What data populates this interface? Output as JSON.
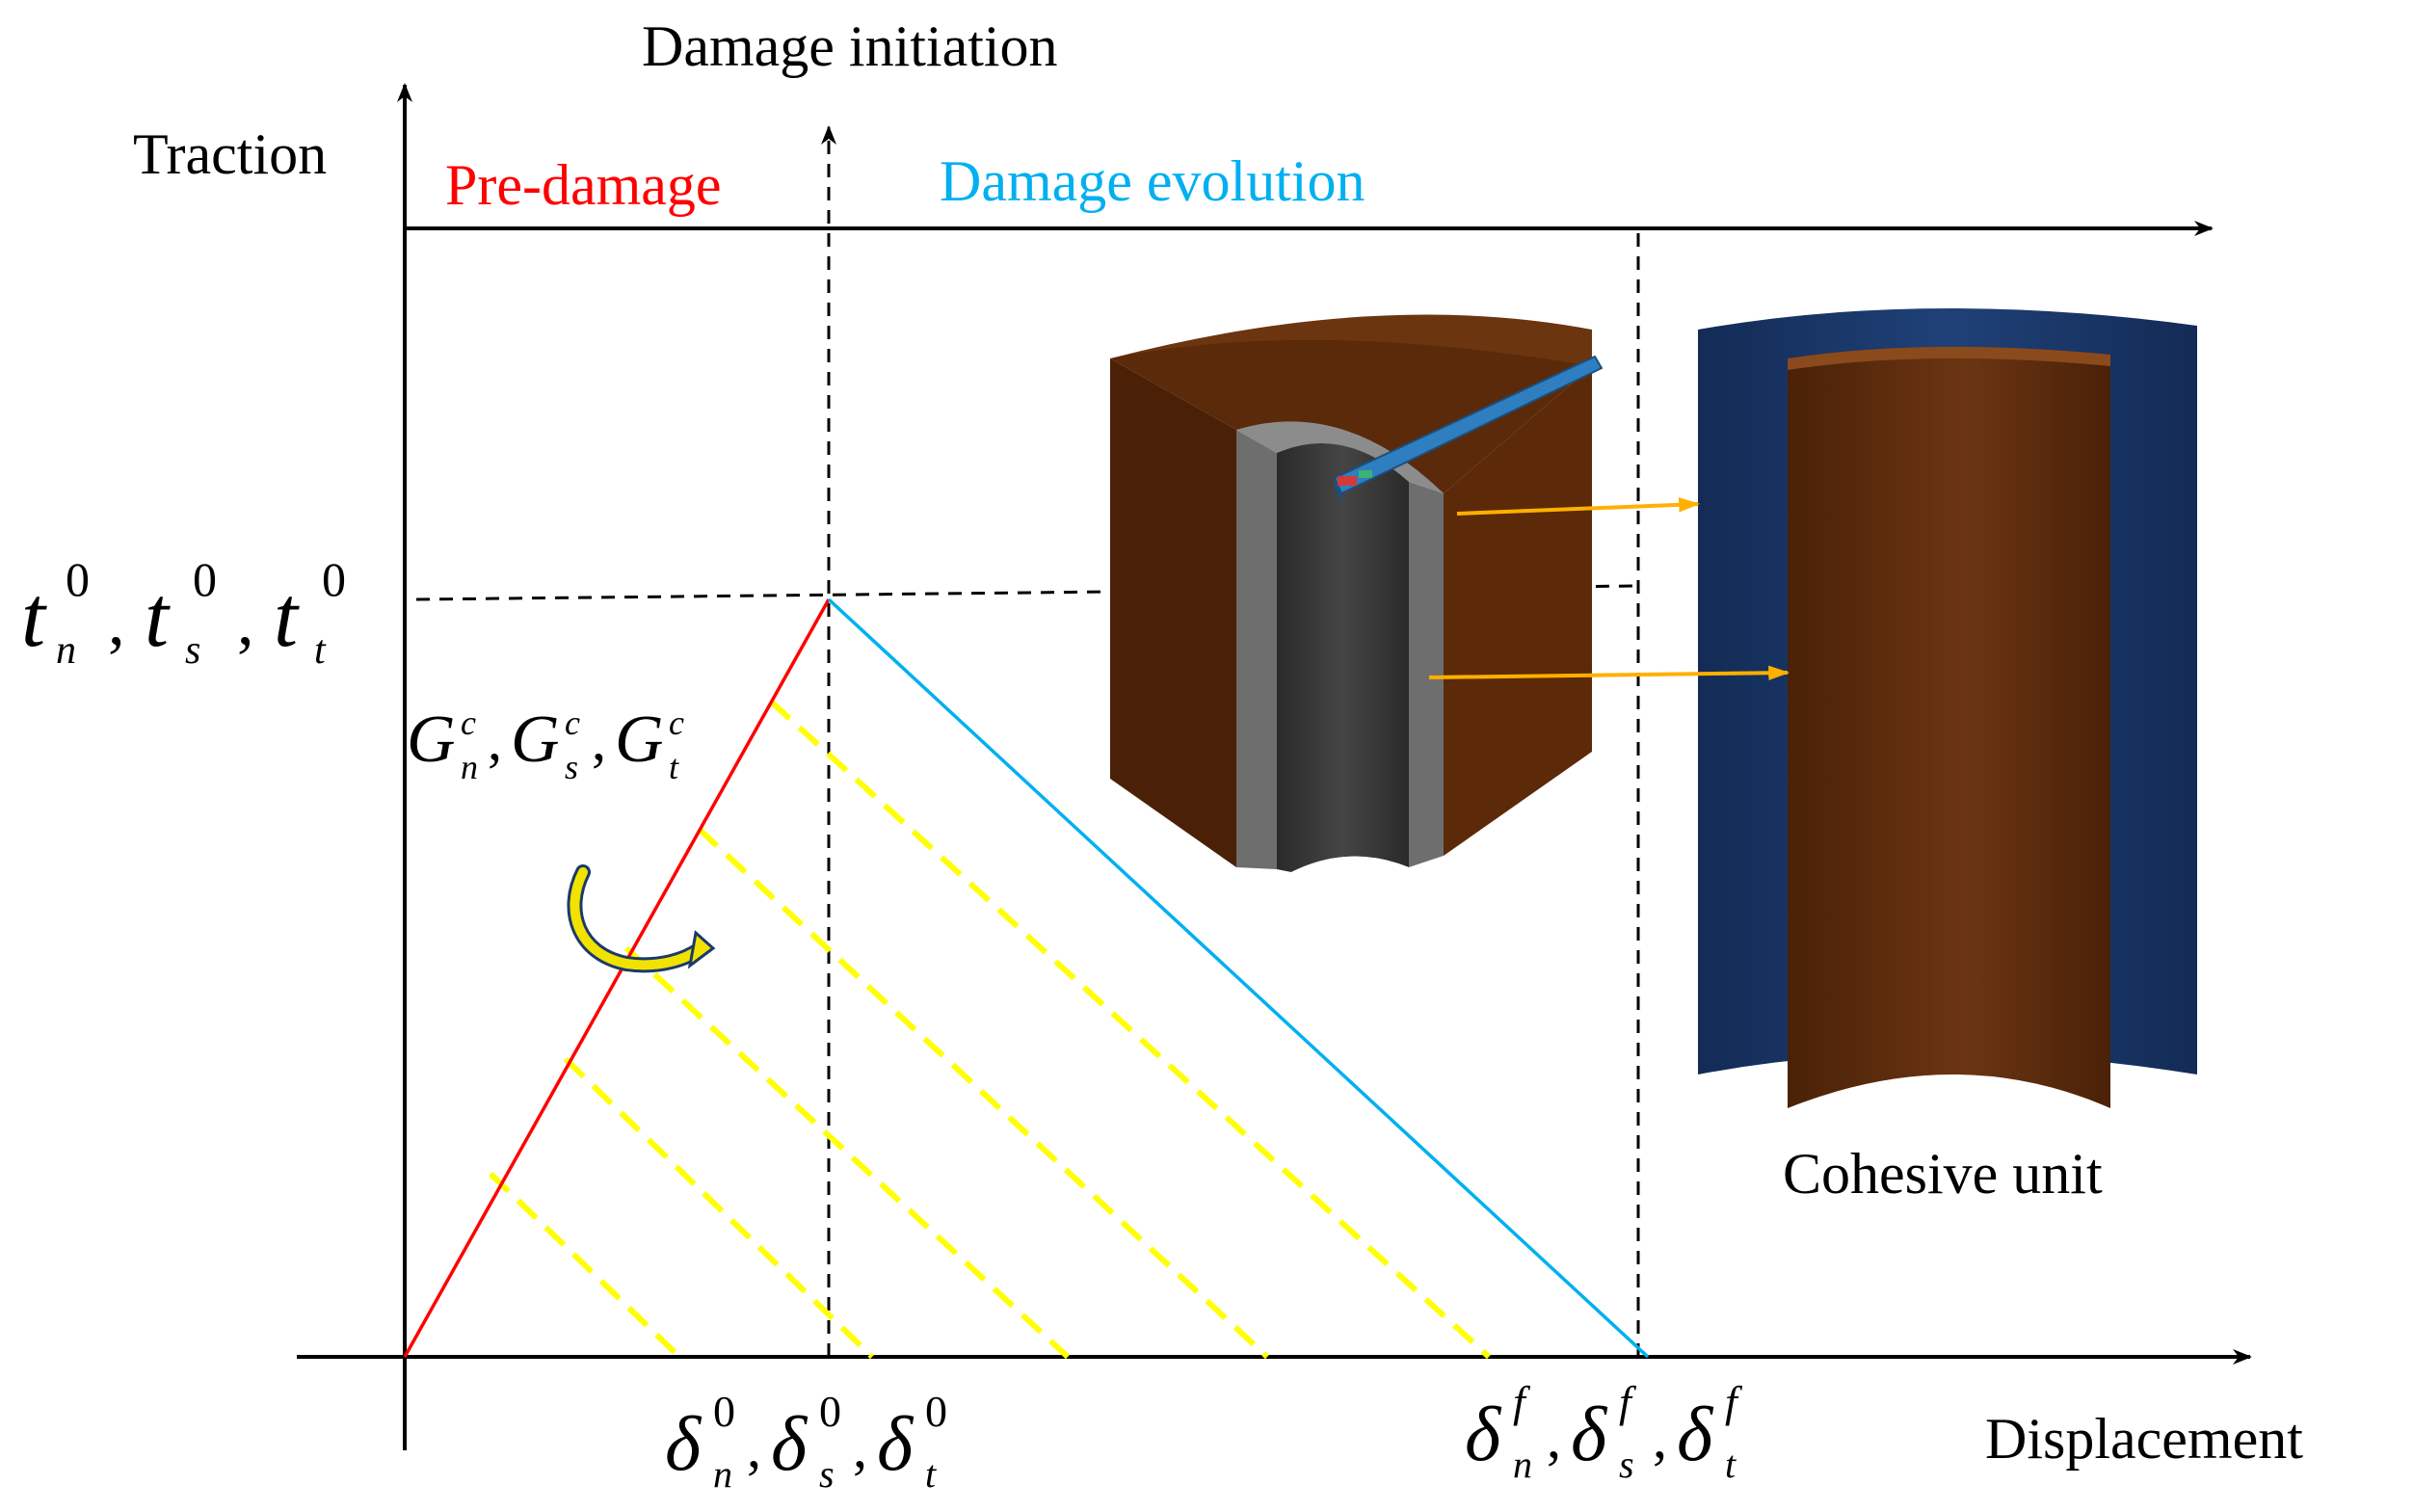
{
  "labels": {
    "y_axis": "Traction",
    "x_axis": "Displacement",
    "damage_initiation": "Damage initiation",
    "pre_damage": "Pre-damage",
    "damage_evolution": "Damage evolution",
    "cohesive_unit": "Cohesive unit"
  },
  "math": {
    "t": "t",
    "G": "G",
    "delta": "δ",
    "sub_n": "n",
    "sub_s": "s",
    "sub_t": "t",
    "sup_zero": "0",
    "sup_c": "c",
    "sup_f": "f",
    "comma": ","
  },
  "colors": {
    "axis": "#000000",
    "pre_damage": "#ff0000",
    "damage_evolution": "#00b0f0",
    "hatch": "#ffff00",
    "arrow": "#ffb000",
    "casing_outer": "#5c2a08",
    "casing_top": "#6b3510",
    "cement_ring": "#7a7a7a",
    "pipe": "#3a3a3a",
    "cohesive_outer": "#1c3a6b",
    "cohesive_inner": "#6b3512"
  },
  "icons": [
    "rotate-arrow-icon",
    "pointer-arrow-icon"
  ]
}
